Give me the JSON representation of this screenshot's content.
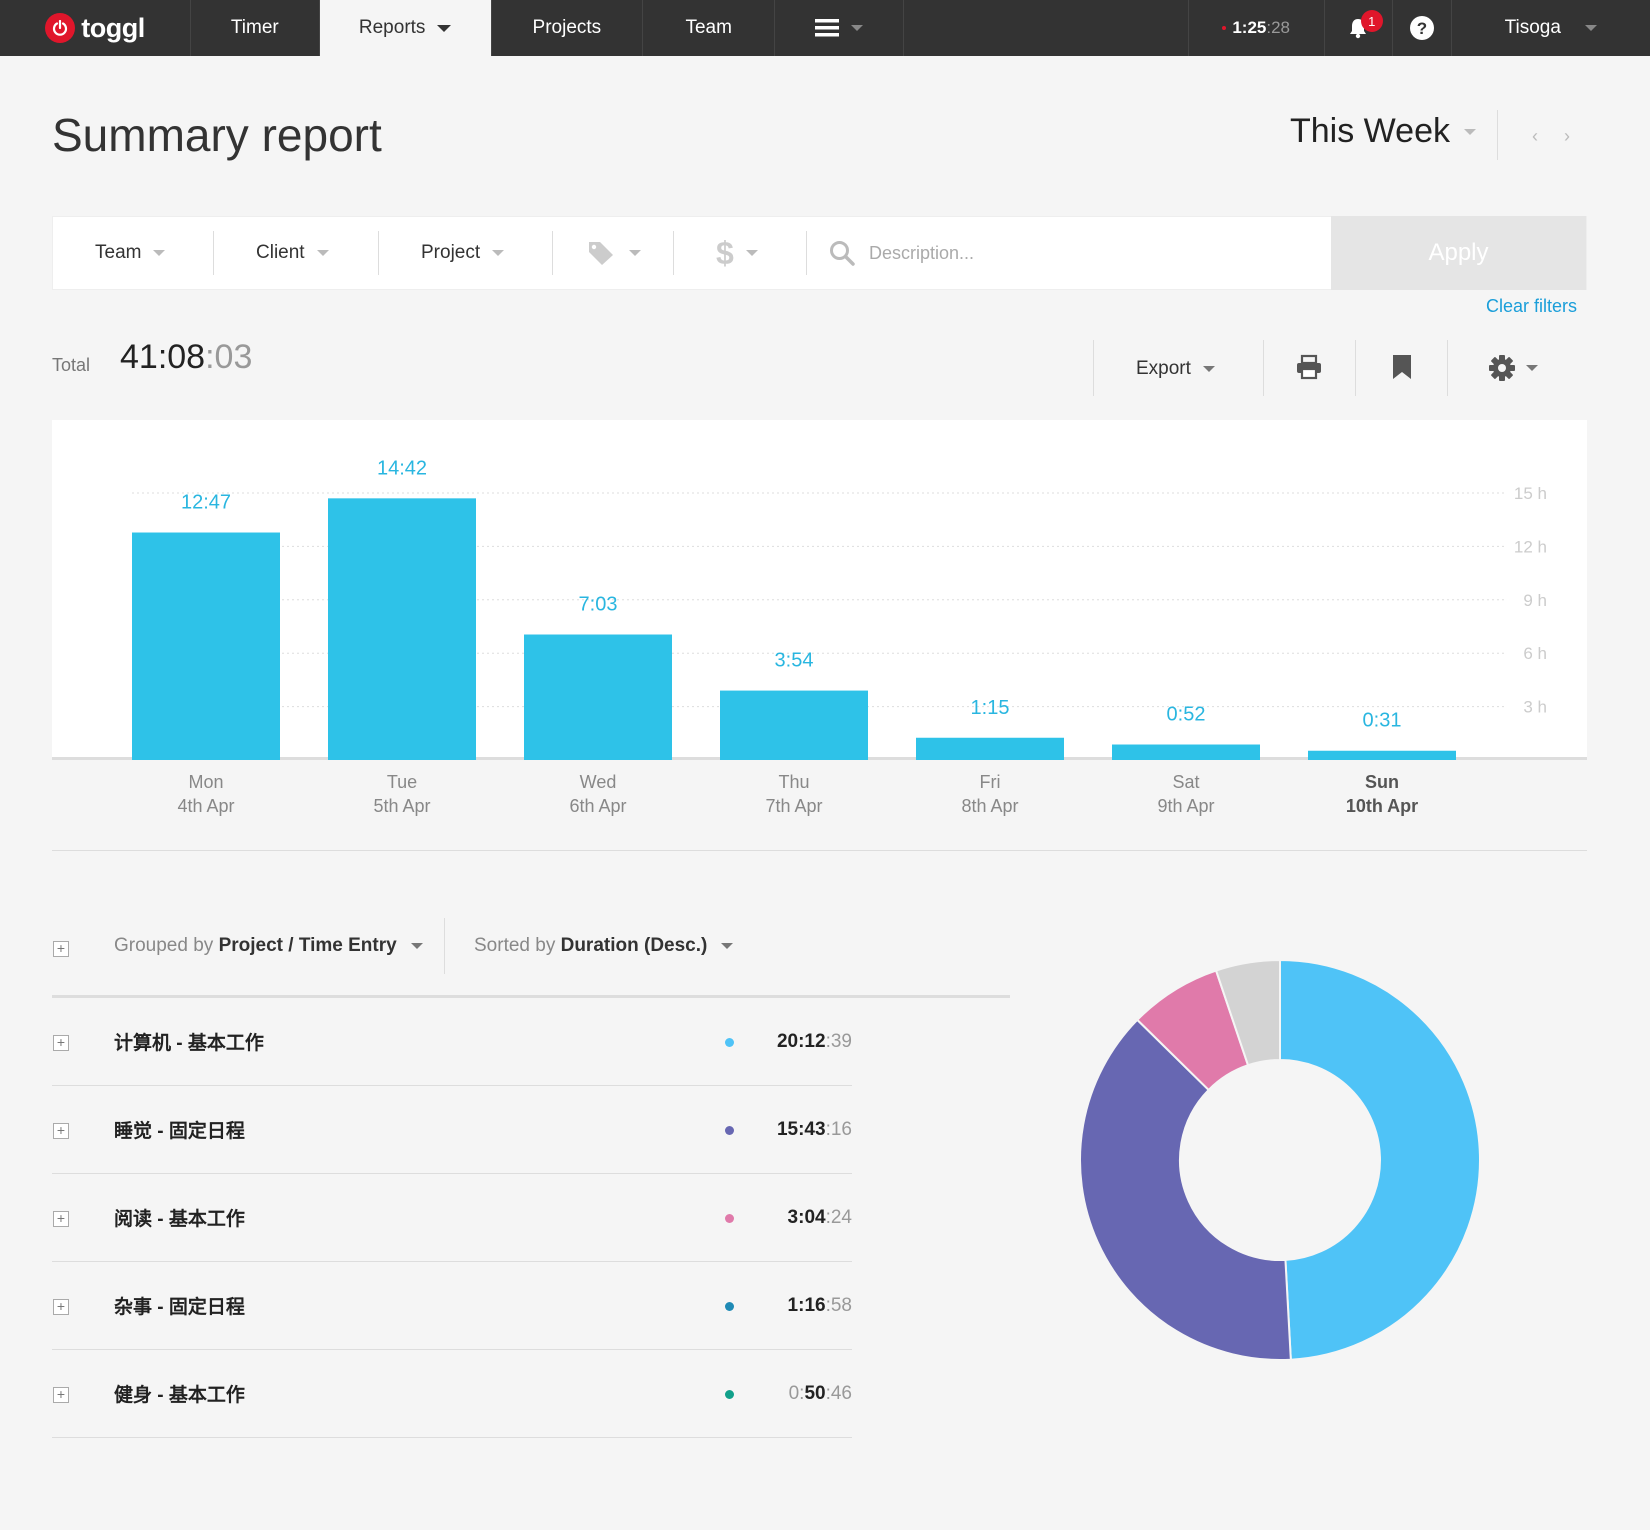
{
  "nav": {
    "logo": "toggl",
    "timer": "Timer",
    "reports": "Reports",
    "projects": "Projects",
    "team": "Team",
    "clock_main": "1:25",
    "clock_sec": ":28",
    "notifications": "1",
    "user": "Tisoga"
  },
  "header": {
    "title": "Summary report",
    "period": "This Week"
  },
  "filters": {
    "team": "Team",
    "client": "Client",
    "project": "Project",
    "description_placeholder": "Description...",
    "apply": "Apply",
    "clear": "Clear filters"
  },
  "totals": {
    "label": "Total",
    "main": "41:08",
    "sec": ":03"
  },
  "toolbar": {
    "export": "Export"
  },
  "chart_data": {
    "type": "bar",
    "categories": [
      "Mon",
      "Tue",
      "Wed",
      "Thu",
      "Fri",
      "Sat",
      "Sun"
    ],
    "dates": [
      "4th Apr",
      "5th Apr",
      "6th Apr",
      "7th Apr",
      "8th Apr",
      "9th Apr",
      "10th Apr"
    ],
    "value_labels": [
      "12:47",
      "14:42",
      "7:03",
      "3:54",
      "1:15",
      "0:52",
      "0:31"
    ],
    "values": [
      12.78,
      14.7,
      7.05,
      3.9,
      1.25,
      0.87,
      0.52
    ],
    "y_ticks": [
      "3 h",
      "6 h",
      "9 h",
      "12 h",
      "15 h"
    ],
    "y_tick_values": [
      3,
      6,
      9,
      12,
      15
    ],
    "ylim": [
      0,
      15
    ],
    "color": "#2ec2e8",
    "highlight_day": "Sun"
  },
  "grouping": {
    "grouped_prefix": "Grouped by",
    "grouped_value": "Project / Time Entry",
    "sorted_prefix": "Sorted by",
    "sorted_value": "Duration (Desc.)"
  },
  "projects": [
    {
      "name": "计算机 - 基本工作",
      "dur_main": "20:12",
      "dur_sec": ":39",
      "color": "#4fc3f7",
      "hours": 20.21
    },
    {
      "name": "睡觉 - 固定日程",
      "dur_main": "15:43",
      "dur_sec": ":16",
      "color": "#6767b2",
      "hours": 15.72
    },
    {
      "name": "阅读 - 基本工作",
      "dur_main": "3:04",
      "dur_sec": ":24",
      "color": "#e07aaa",
      "hours": 3.07
    },
    {
      "name": "杂事 - 固定日程",
      "dur_main": "1:16",
      "dur_sec": ":58",
      "color": "#1f8ab5",
      "hours": 1.28
    },
    {
      "name": "健身 - 基本工作",
      "dur_dim": "0:",
      "dur_main": "50",
      "dur_sec": ":46",
      "color": "#11a08a",
      "hours": 0.85
    }
  ],
  "donut_data": {
    "values": [
      20.21,
      15.72,
      3.07,
      2.13
    ],
    "colors": [
      "#4fc3f7",
      "#6767b2",
      "#e07aaa",
      "#d3d3d3"
    ]
  }
}
